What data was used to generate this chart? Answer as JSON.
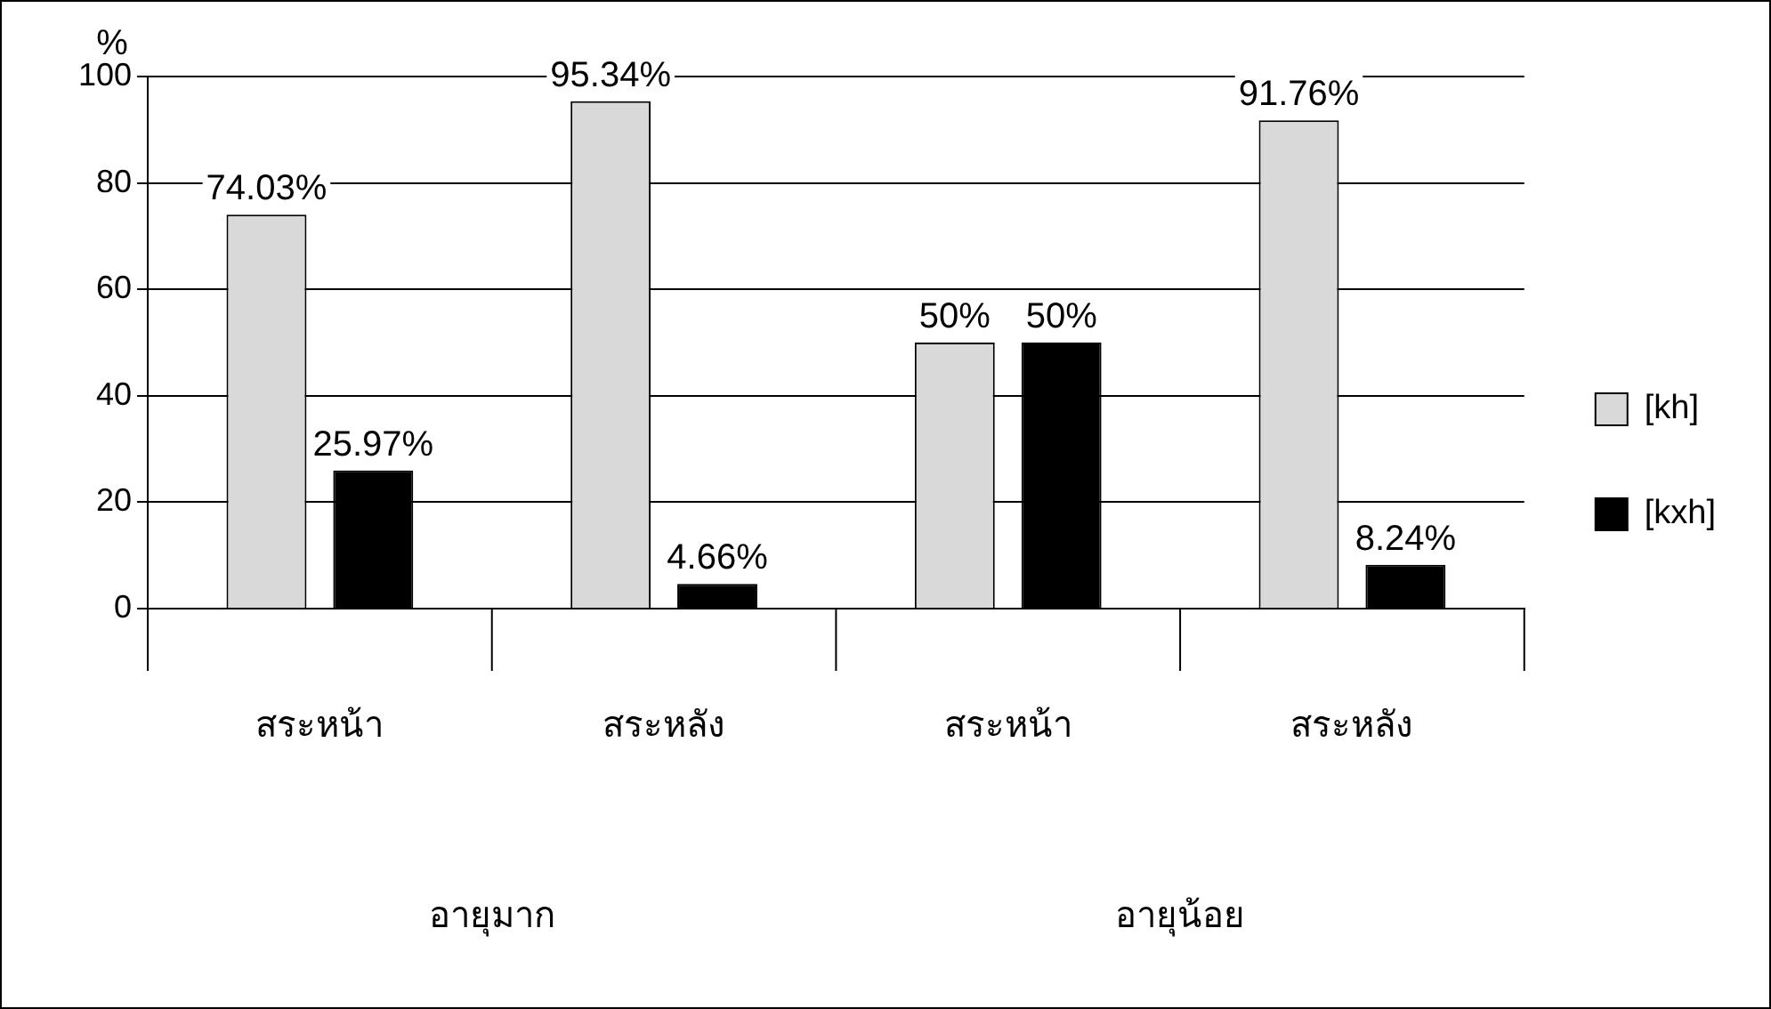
{
  "chart_data": {
    "type": "bar",
    "ylabel": "%",
    "categories": [
      "สระหน้า",
      "สระหลัง",
      "สระหน้า",
      "สระหลัง"
    ],
    "series": [
      {
        "name": "[kh]",
        "color": "#d9d9d9",
        "values": [
          74.03,
          95.34,
          50,
          91.76
        ],
        "value_labels": [
          "74.03%",
          "95.34%",
          "50%",
          "91.76%"
        ]
      },
      {
        "name": "[kxh]",
        "color": "#000000",
        "values": [
          25.97,
          4.66,
          50,
          8.24
        ],
        "value_labels": [
          "25.97%",
          "4.66%",
          "50%",
          "8.24%"
        ]
      }
    ],
    "ylim": [
      0,
      100
    ],
    "yticks": [
      0,
      20,
      40,
      60,
      80,
      100
    ],
    "grid": "y",
    "legend": "right",
    "annotations": [
      "อายุมาก",
      "อายุน้อย"
    ]
  }
}
